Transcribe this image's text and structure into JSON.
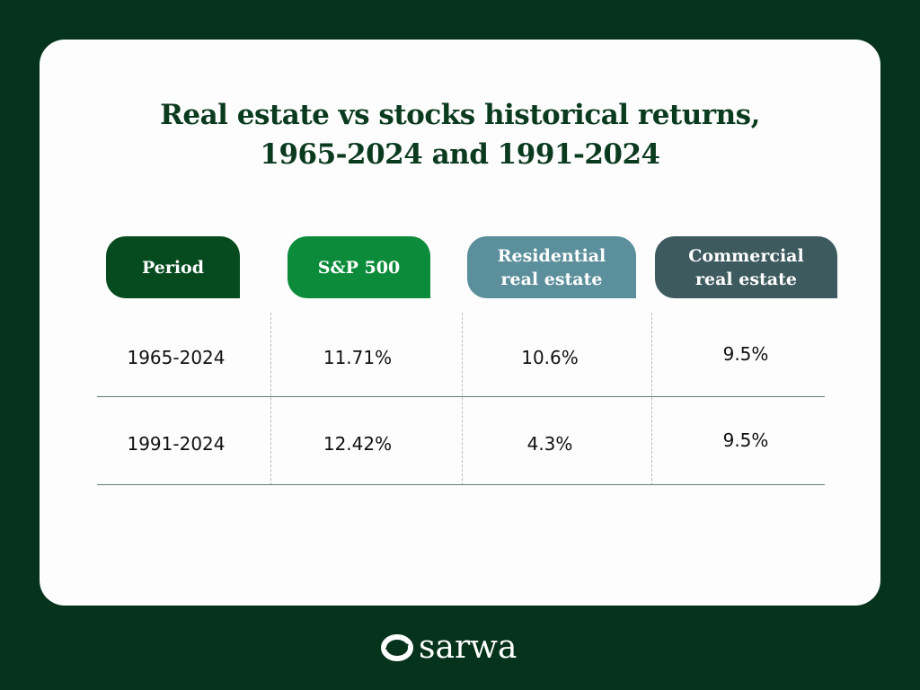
{
  "title_line1": "Real estate vs stocks historical returns,",
  "title_line2": "1965-2024 and 1991-2024",
  "headers": [
    {
      "line1": "Period",
      "line2": "",
      "color": "#064a1f"
    },
    {
      "line1": "S&P 500",
      "line2": "",
      "color": "#0c8c3b"
    },
    {
      "line1": "Residential",
      "line2": "real estate",
      "color": "#5c8f9c"
    },
    {
      "line1": "Commercial",
      "line2": "real estate",
      "color": "#3d5a5f"
    }
  ],
  "rows": [
    [
      "1965-2024",
      "11.71%",
      "10.6%",
      "9.5%"
    ],
    [
      "1991-2024",
      "12.42%",
      "4.3%",
      "9.5%"
    ]
  ],
  "brand": "sarwa"
}
